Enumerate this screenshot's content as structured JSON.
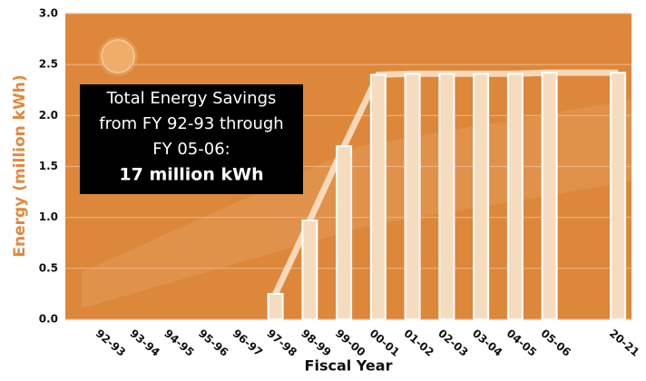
{
  "chart_data": {
    "type": "bar",
    "title_x": "Fiscal Year",
    "title_y": "Energy (million kWh)",
    "categories": [
      "92-93",
      "93-94",
      "94-95",
      "95-96",
      "96-97",
      "97-98",
      "98-99",
      "99-00",
      "00-01",
      "01-02",
      "02-03",
      "03-04",
      "04-05",
      "05-06",
      null,
      "20-21"
    ],
    "values": [
      null,
      null,
      null,
      null,
      null,
      0.25,
      0.97,
      1.7,
      2.4,
      2.41,
      2.41,
      2.41,
      2.41,
      2.42,
      null,
      2.42
    ],
    "color": "#f6dcbf",
    "line_color": "#fbe6cf",
    "ylim": [
      0,
      3
    ],
    "yticks": [
      {
        "value": 0,
        "label": "0.0"
      },
      0.5,
      {
        "value": 1,
        "label": "1.0"
      },
      1.5,
      {
        "value": 2,
        "label": "2.0"
      },
      2.5,
      {
        "value": 3,
        "label": "3.0"
      }
    ],
    "grid": true,
    "annotation": [
      "Total Energy Savings",
      "from FY 92-93 through",
      "FY 05-06:",
      "17 million kWh"
    ]
  }
}
